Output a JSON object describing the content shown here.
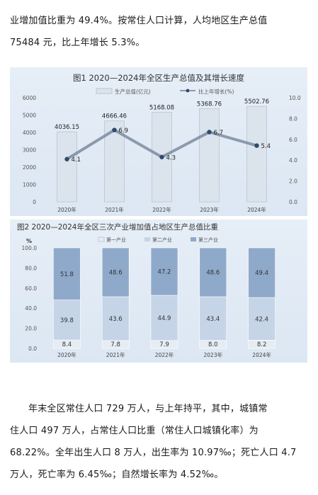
{
  "paragraph_top": {
    "lines": [
      "业增加值比重为 49.4%。按常住人口计算，人均地区生产总值",
      "75484 元，比上年增长 5.3%。"
    ]
  },
  "figure1": {
    "title": "图1   2020—2024年全区生产总值及其增长速度",
    "legend": {
      "bar_label": "生产总值(亿元)",
      "line_label": "比上年增长(%)"
    },
    "colors": {
      "bar": "#dbe3ec",
      "bar_stroke": "#b8c6d6",
      "line": "#6e7f95",
      "point": "#2f4a6b"
    },
    "chart_data": {
      "type": "bar",
      "categories": [
        "2020年",
        "2021年",
        "2022年",
        "2023年",
        "2024年"
      ],
      "series": [
        {
          "name": "生产总值(亿元)",
          "values": [
            4036.15,
            4666.46,
            5168.08,
            5368.76,
            5502.76
          ]
        },
        {
          "name": "比上年增长(%)",
          "values": [
            4.1,
            6.9,
            4.3,
            6.7,
            5.4
          ]
        }
      ],
      "value_labels": [
        "4036.15",
        "4666.46",
        "5168.08",
        "5368.76",
        "5502.76"
      ],
      "growth_labels": [
        "4.1",
        "6.9",
        "4.3",
        "6.7",
        "5.4"
      ],
      "left_ticks": [
        "6000",
        "5000",
        "4000",
        "3000",
        "2000",
        "1000",
        "0"
      ],
      "right_ticks": [
        "10.0",
        "8.0",
        "6.0",
        "4.0",
        "2.0",
        "0.0"
      ],
      "ylim_left": [
        0,
        6000
      ],
      "ylim_right": [
        0,
        10
      ],
      "grid": false,
      "legend_position": "top"
    }
  },
  "figure2": {
    "title": "图2   2020—2024年全区三次产业增加值占地区生产总值比重",
    "unit": "%",
    "legend": [
      "第一产业",
      "第二产业",
      "第三产业"
    ],
    "colors": {
      "primary": "#e6ecf3",
      "secondary": "#c5d4e6",
      "tertiary": "#8fa9ca"
    },
    "chart_data": {
      "type": "bar",
      "stacked": true,
      "categories": [
        "2020年",
        "2021年",
        "2022年",
        "2023年",
        "2024年"
      ],
      "series": [
        {
          "name": "第一产业",
          "values": [
            8.4,
            7.8,
            7.9,
            8.0,
            8.2
          ]
        },
        {
          "name": "第二产业",
          "values": [
            39.8,
            43.6,
            44.9,
            43.4,
            42.4
          ]
        },
        {
          "name": "第三产业",
          "values": [
            51.8,
            48.6,
            47.2,
            48.6,
            49.4
          ]
        }
      ],
      "labels": {
        "primary": [
          "8.4",
          "7.8",
          "7.9",
          "8.0",
          "8.2"
        ],
        "secondary": [
          "39.8",
          "43.6",
          "44.9",
          "43.4",
          "42.4"
        ],
        "tertiary": [
          "51.8",
          "48.6",
          "47.2",
          "48.6",
          "49.4"
        ]
      },
      "y_ticks": [
        "100.0",
        "80.0",
        "60.0",
        "40.0",
        "20.0",
        "0.0"
      ],
      "ylim": [
        0,
        100
      ],
      "grid": false,
      "legend_position": "top"
    }
  },
  "paragraph_bottom": {
    "lines": [
      "年末全区常住人口 729 万人，与上年持平，其中，城镇常",
      "住人口 497 万人，占常住人口比重（常住人口城镇化率）为",
      "68.22%。全年出生人口 8 万人，出生率为 10.97‰；死亡人口 4.7",
      "万人，死亡率为 6.45‰；自然增长率为 4.52‰。"
    ]
  }
}
